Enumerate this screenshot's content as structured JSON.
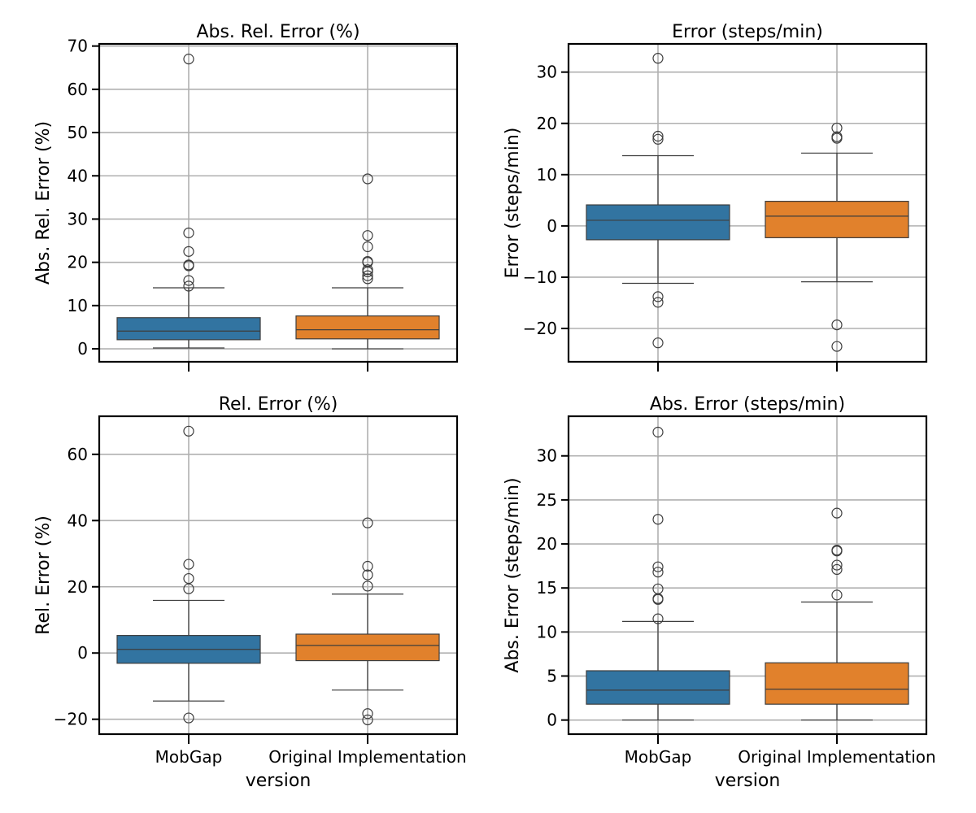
{
  "figure": {
    "xlabel": "version",
    "categories": [
      "MobGap",
      "Original Implementation"
    ],
    "colors": {
      "MobGap": "#3274a1",
      "Original Implementation": "#e1812c"
    }
  },
  "chart_data": [
    {
      "type": "box",
      "title": "Abs. Rel. Error (%)",
      "ylabel": "Abs. Rel. Error (%)",
      "ylim": [
        -3,
        70.5
      ],
      "yticks": [
        0,
        10,
        20,
        30,
        40,
        50,
        60,
        70
      ],
      "ytick_labels": [
        "0",
        "10",
        "20",
        "30",
        "40",
        "50",
        "60",
        "70"
      ],
      "show_xticklabels": false,
      "boxes": [
        {
          "category": "MobGap",
          "whisker_low": 0.2,
          "q1": 2.1,
          "median": 4.1,
          "q3": 7.2,
          "whisker_high": 14.1,
          "outliers": [
            14.5,
            15.8,
            19.2,
            19.4,
            22.5,
            26.8,
            67.0
          ]
        },
        {
          "category": "Original Implementation",
          "whisker_low": 0.0,
          "q1": 2.3,
          "median": 4.4,
          "q3": 7.6,
          "whisker_high": 14.1,
          "outliers": [
            16.2,
            16.9,
            17.8,
            18.3,
            20.2,
            20.0,
            23.6,
            26.2,
            39.3
          ]
        }
      ]
    },
    {
      "type": "box",
      "title": "Error (steps/min)",
      "ylabel": "Error (steps/min)",
      "ylim": [
        -26.5,
        35.5
      ],
      "yticks": [
        -20,
        -10,
        0,
        10,
        20,
        30
      ],
      "ytick_labels": [
        "−20",
        "−10",
        "0",
        "10",
        "20",
        "30"
      ],
      "show_xticklabels": false,
      "boxes": [
        {
          "category": "MobGap",
          "whisker_low": -11.2,
          "q1": -2.7,
          "median": 1.1,
          "q3": 4.1,
          "whisker_high": 13.7,
          "outliers": [
            -22.8,
            -14.9,
            -13.8,
            16.9,
            17.5,
            32.7
          ]
        },
        {
          "category": "Original Implementation",
          "whisker_low": -10.9,
          "q1": -2.3,
          "median": 1.9,
          "q3": 4.8,
          "whisker_high": 14.2,
          "outliers": [
            -23.5,
            -19.3,
            17.1,
            17.4,
            19.1
          ]
        }
      ]
    },
    {
      "type": "box",
      "title": "Rel. Error (%)",
      "ylabel": "Rel. Error (%)",
      "ylim": [
        -24.5,
        71.5
      ],
      "yticks": [
        -20,
        0,
        20,
        40,
        60
      ],
      "ytick_labels": [
        "−20",
        "0",
        "20",
        "40",
        "60"
      ],
      "show_xticklabels": true,
      "boxes": [
        {
          "category": "MobGap",
          "whisker_low": -14.5,
          "q1": -3.1,
          "median": 1.1,
          "q3": 5.3,
          "whisker_high": 15.9,
          "outliers": [
            -19.6,
            19.4,
            22.5,
            26.8,
            67.0
          ]
        },
        {
          "category": "Original Implementation",
          "whisker_low": -11.2,
          "q1": -2.3,
          "median": 2.3,
          "q3": 5.7,
          "whisker_high": 17.8,
          "outliers": [
            -20.2,
            -18.3,
            20.2,
            23.6,
            26.2,
            39.3
          ]
        }
      ]
    },
    {
      "type": "box",
      "title": "Abs. Error (steps/min)",
      "ylabel": "Abs. Error (steps/min)",
      "ylim": [
        -1.6,
        34.5
      ],
      "yticks": [
        0,
        5,
        10,
        15,
        20,
        25,
        30
      ],
      "ytick_labels": [
        "0",
        "5",
        "10",
        "15",
        "20",
        "25",
        "30"
      ],
      "show_xticklabels": true,
      "boxes": [
        {
          "category": "MobGap",
          "whisker_low": 0.0,
          "q1": 1.8,
          "median": 3.4,
          "q3": 5.6,
          "whisker_high": 11.2,
          "outliers": [
            11.5,
            13.7,
            13.8,
            14.9,
            16.8,
            17.4,
            22.8,
            32.7
          ]
        },
        {
          "category": "Original Implementation",
          "whisker_low": 0.0,
          "q1": 1.8,
          "median": 3.5,
          "q3": 6.5,
          "whisker_high": 13.4,
          "outliers": [
            14.2,
            17.1,
            17.6,
            19.2,
            19.3,
            23.5
          ]
        }
      ]
    }
  ]
}
